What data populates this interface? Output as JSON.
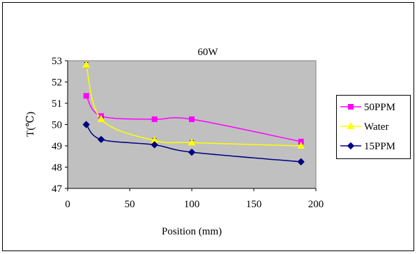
{
  "chart_data": {
    "type": "line",
    "title": "60W",
    "xlabel": "Position (mm)",
    "ylabel": "T(℃)",
    "xlim": [
      0,
      200
    ],
    "ylim": [
      47,
      53
    ],
    "x_ticks": [
      "0",
      "50",
      "100",
      "150",
      "200"
    ],
    "y_ticks": [
      "47",
      "48",
      "49",
      "50",
      "51",
      "52",
      "53"
    ],
    "grid": false,
    "legend_position": "right",
    "plot_background": "#c0c0c0",
    "series": [
      {
        "name": "50PPM",
        "color": "#ff00ff",
        "marker": "square",
        "x": [
          15,
          27,
          70,
          100,
          188
        ],
        "y": [
          51.35,
          50.4,
          50.25,
          50.25,
          49.2
        ],
        "error": [
          0.07,
          0.07,
          0.07,
          0.07,
          0.07
        ]
      },
      {
        "name": "Water",
        "color": "#ffff00",
        "marker": "triangle",
        "x": [
          15,
          27,
          70,
          100,
          188
        ],
        "y": [
          52.8,
          50.25,
          49.25,
          49.15,
          49.0
        ],
        "error": [
          0.12,
          0.1,
          0.1,
          0.1,
          0.08
        ]
      },
      {
        "name": "15PPM",
        "color": "#000080",
        "marker": "diamond",
        "x": [
          15,
          27,
          70,
          100,
          188
        ],
        "y": [
          50.0,
          49.3,
          49.05,
          48.7,
          48.25
        ],
        "error": [
          0.07,
          0.07,
          0.07,
          0.07,
          0.07
        ]
      }
    ]
  }
}
